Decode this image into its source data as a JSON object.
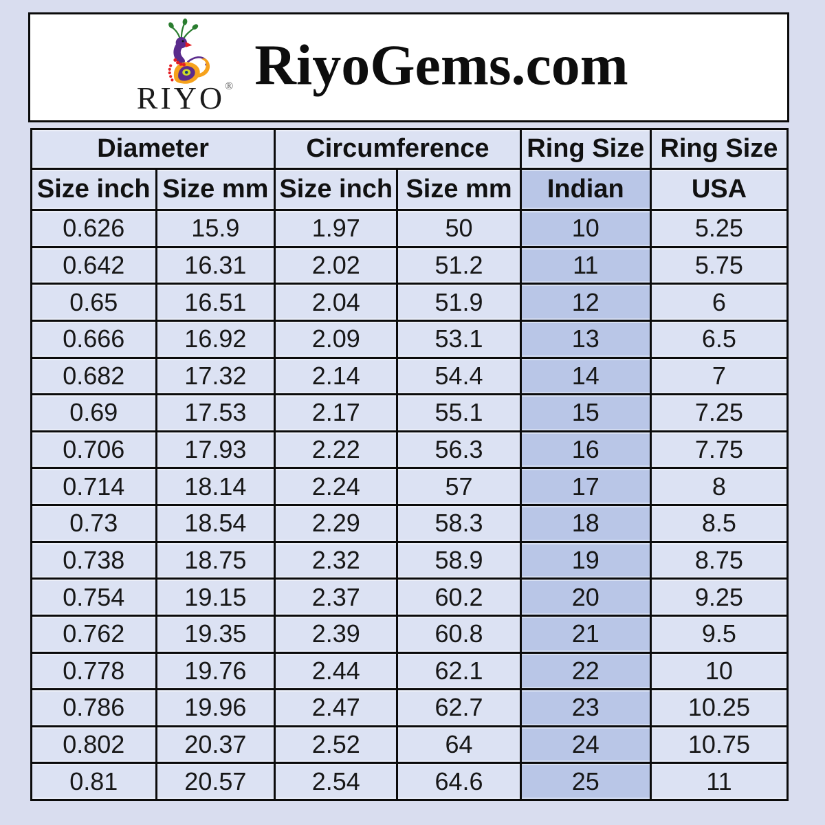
{
  "header": {
    "logo_text": "RIYO",
    "registered_symbol": "®",
    "brand_text": "RiyoGems.com"
  },
  "chart_data": {
    "type": "table",
    "title": "RiyoGems.com",
    "group_headers": [
      {
        "label": "Diameter",
        "colspan": 2
      },
      {
        "label": "Circumference",
        "colspan": 2
      },
      {
        "label": "Ring Size",
        "colspan": 1
      },
      {
        "label": "Ring Size",
        "colspan": 1
      }
    ],
    "columns": [
      "Size inch",
      "Size mm",
      "Size inch",
      "Size mm",
      "Indian",
      "USA"
    ],
    "rows": [
      [
        "0.626",
        "15.9",
        "1.97",
        "50",
        "10",
        "5.25"
      ],
      [
        "0.642",
        "16.31",
        "2.02",
        "51.2",
        "11",
        "5.75"
      ],
      [
        "0.65",
        "16.51",
        "2.04",
        "51.9",
        "12",
        "6"
      ],
      [
        "0.666",
        "16.92",
        "2.09",
        "53.1",
        "13",
        "6.5"
      ],
      [
        "0.682",
        "17.32",
        "2.14",
        "54.4",
        "14",
        "7"
      ],
      [
        "0.69",
        "17.53",
        "2.17",
        "55.1",
        "15",
        "7.25"
      ],
      [
        "0.706",
        "17.93",
        "2.22",
        "56.3",
        "16",
        "7.75"
      ],
      [
        "0.714",
        "18.14",
        "2.24",
        "57",
        "17",
        "8"
      ],
      [
        "0.73",
        "18.54",
        "2.29",
        "58.3",
        "18",
        "8.5"
      ],
      [
        "0.738",
        "18.75",
        "2.32",
        "58.9",
        "19",
        "8.75"
      ],
      [
        "0.754",
        "19.15",
        "2.37",
        "60.2",
        "20",
        "9.25"
      ],
      [
        "0.762",
        "19.35",
        "2.39",
        "60.8",
        "21",
        "9.5"
      ],
      [
        "0.778",
        "19.76",
        "2.44",
        "62.1",
        "22",
        "10"
      ],
      [
        "0.786",
        "19.96",
        "2.47",
        "62.7",
        "23",
        "10.25"
      ],
      [
        "0.802",
        "20.37",
        "2.52",
        "64",
        "24",
        "10.75"
      ],
      [
        "0.81",
        "20.57",
        "2.54",
        "64.6",
        "25",
        "11"
      ]
    ],
    "highlighted_column": "Indian",
    "highlighted_column_index": 4,
    "legend_position": "none",
    "grid": true
  },
  "colors": {
    "page_background": "#d9ddef",
    "cell_background": "#dce2f3",
    "highlight_column_background": "#b9c6e7",
    "header_box_background": "#ffffff",
    "table_border": "#0b0b0b",
    "logo_purple": "#5a2b8c",
    "logo_green": "#2a7d2f",
    "logo_orange": "#f6a21c",
    "logo_red": "#e31e24",
    "logo_eye_yellow": "#cddc29"
  }
}
